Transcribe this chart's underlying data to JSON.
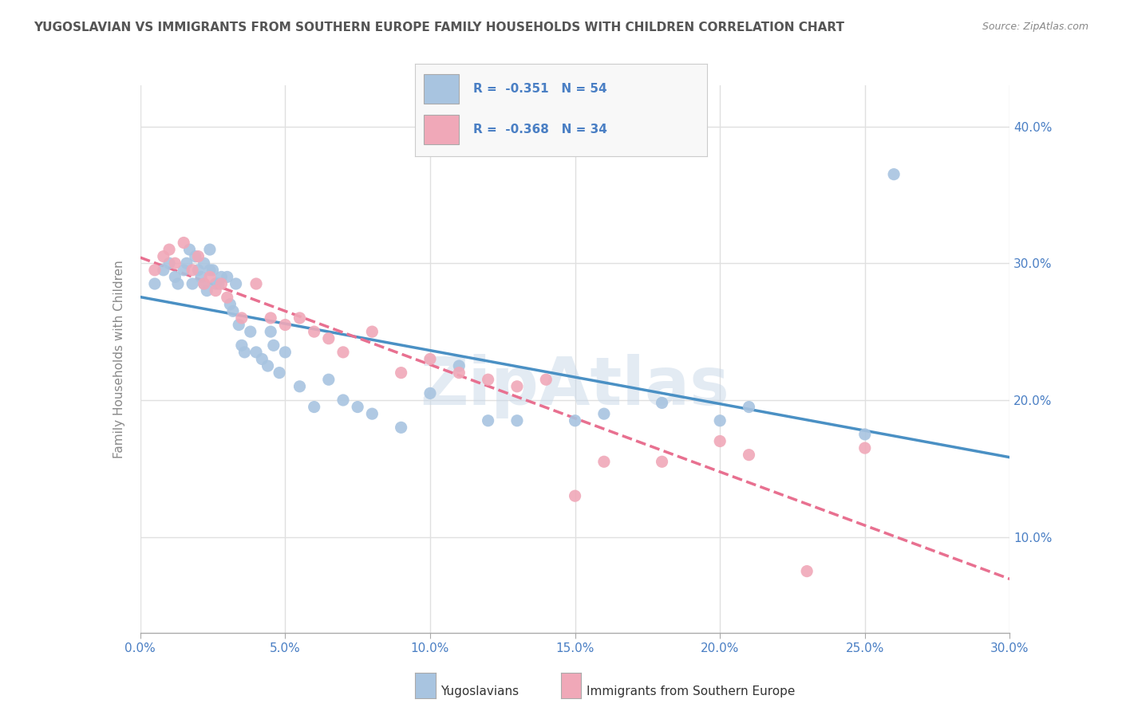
{
  "title": "YUGOSLAVIAN VS IMMIGRANTS FROM SOUTHERN EUROPE FAMILY HOUSEHOLDS WITH CHILDREN CORRELATION CHART",
  "source": "Source: ZipAtlas.com",
  "ylabel": "Family Households with Children",
  "xmin": 0.0,
  "xmax": 0.3,
  "ymin": 0.03,
  "ymax": 0.43,
  "blue_R": -0.351,
  "blue_N": 54,
  "pink_R": -0.368,
  "pink_N": 34,
  "blue_color": "#a8c4e0",
  "pink_color": "#f0a8b8",
  "blue_line_color": "#4a90c4",
  "pink_line_color": "#e87090",
  "title_color": "#555555",
  "axis_color": "#4a7fc4",
  "watermark_color": "#c8d8e8",
  "background_color": "#ffffff",
  "grid_color": "#e0e0e0",
  "legend_label_blue": "Yugoslavians",
  "legend_label_pink": "Immigrants from Southern Europe",
  "blue_scatter_x": [
    0.005,
    0.008,
    0.01,
    0.012,
    0.013,
    0.015,
    0.016,
    0.017,
    0.018,
    0.019,
    0.02,
    0.021,
    0.022,
    0.022,
    0.023,
    0.024,
    0.024,
    0.025,
    0.026,
    0.027,
    0.028,
    0.03,
    0.031,
    0.032,
    0.033,
    0.034,
    0.035,
    0.036,
    0.038,
    0.04,
    0.042,
    0.044,
    0.045,
    0.046,
    0.048,
    0.05,
    0.055,
    0.06,
    0.065,
    0.07,
    0.075,
    0.08,
    0.09,
    0.1,
    0.11,
    0.12,
    0.13,
    0.15,
    0.16,
    0.18,
    0.2,
    0.21,
    0.25,
    0.26
  ],
  "blue_scatter_y": [
    0.285,
    0.295,
    0.3,
    0.29,
    0.285,
    0.295,
    0.3,
    0.31,
    0.285,
    0.305,
    0.295,
    0.29,
    0.3,
    0.285,
    0.28,
    0.295,
    0.31,
    0.295,
    0.285,
    0.285,
    0.29,
    0.29,
    0.27,
    0.265,
    0.285,
    0.255,
    0.24,
    0.235,
    0.25,
    0.235,
    0.23,
    0.225,
    0.25,
    0.24,
    0.22,
    0.235,
    0.21,
    0.195,
    0.215,
    0.2,
    0.195,
    0.19,
    0.18,
    0.205,
    0.225,
    0.185,
    0.185,
    0.185,
    0.19,
    0.198,
    0.185,
    0.195,
    0.175,
    0.365
  ],
  "pink_scatter_x": [
    0.005,
    0.008,
    0.01,
    0.012,
    0.015,
    0.018,
    0.02,
    0.022,
    0.024,
    0.026,
    0.028,
    0.03,
    0.035,
    0.04,
    0.045,
    0.05,
    0.055,
    0.06,
    0.065,
    0.07,
    0.08,
    0.09,
    0.1,
    0.11,
    0.12,
    0.13,
    0.14,
    0.15,
    0.16,
    0.18,
    0.2,
    0.21,
    0.23,
    0.25
  ],
  "pink_scatter_y": [
    0.295,
    0.305,
    0.31,
    0.3,
    0.315,
    0.295,
    0.305,
    0.285,
    0.29,
    0.28,
    0.285,
    0.275,
    0.26,
    0.285,
    0.26,
    0.255,
    0.26,
    0.25,
    0.245,
    0.235,
    0.25,
    0.22,
    0.23,
    0.22,
    0.215,
    0.21,
    0.215,
    0.13,
    0.155,
    0.155,
    0.17,
    0.16,
    0.075,
    0.165
  ]
}
